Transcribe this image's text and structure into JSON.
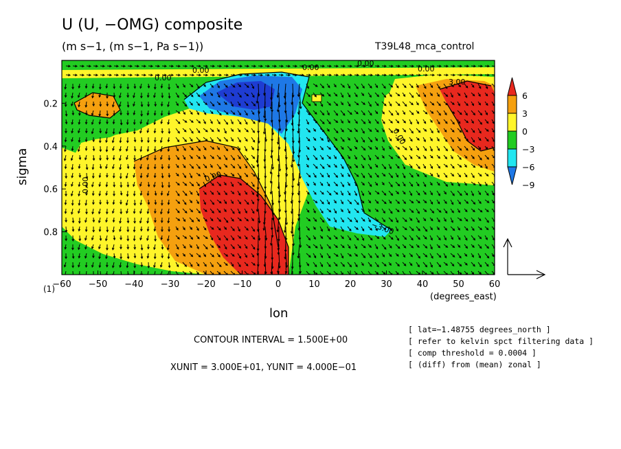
{
  "title": "U (U, −OMG) composite",
  "subtitle": "(m s−1, (m s−1, Pa s−1))",
  "run_label": "T39L48_mca_control",
  "unit_note": "(1)",
  "colors": {
    "red": "#e8281e",
    "orange": "#f5a00f",
    "yellow": "#fff52a",
    "green": "#22cc22",
    "cyan": "#22e6f0",
    "blue": "#1e78e6",
    "darkblue": "#1e3cd2"
  },
  "chart_data": {
    "type": "heatmap",
    "xlabel": "lon",
    "xunit_label": "(degrees_east)",
    "ylabel": "sigma",
    "xlim": [
      -60,
      60
    ],
    "ylim": [
      1.0,
      0.0
    ],
    "x_ticks": [
      "−60",
      "−50",
      "−40",
      "−30",
      "−20",
      "−10",
      "0",
      "10",
      "20",
      "30",
      "40",
      "50",
      "60"
    ],
    "x_tick_values": [
      -60,
      -50,
      -40,
      -30,
      -20,
      -10,
      0,
      10,
      20,
      30,
      40,
      50,
      60
    ],
    "y_ticks": [
      "0.2",
      "0.4",
      "0.6",
      "0.8"
    ],
    "y_tick_values": [
      0.2,
      0.4,
      0.6,
      0.8
    ],
    "colorbar_labels": [
      "6",
      "3",
      "0",
      "−3",
      "−6",
      "−9"
    ],
    "colorbar_levels": [
      6,
      3,
      0,
      -3,
      -6,
      -9
    ],
    "contour_labels": [
      "0.00",
      "3.00",
      "−3.00"
    ],
    "vector_overlay": "U, −OMG",
    "contour_interval": "CONTOUR INTERVAL = 1.500E+00",
    "units_line": "XUNIT = 3.000E+01, YUNIT = 4.000E−01",
    "info": [
      "[ lat=−1.48755 degrees_north ]",
      "[ refer to kelvin spct filtering data ]",
      "[ comp threshold = 0.0004 ]",
      "[ (diff) from (mean) zonal ]"
    ]
  }
}
